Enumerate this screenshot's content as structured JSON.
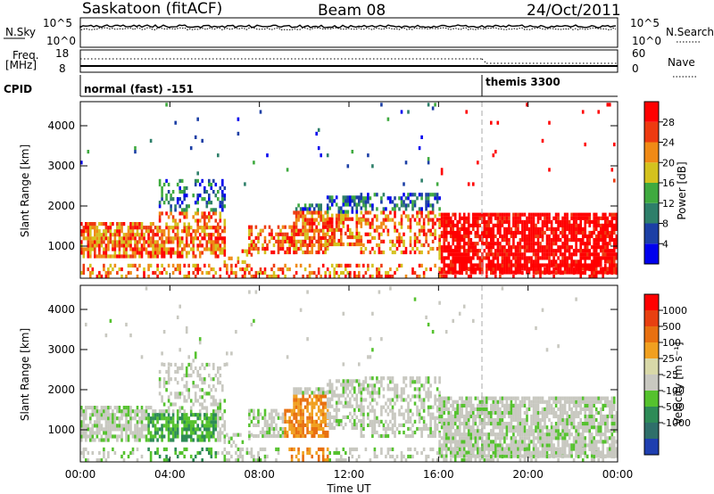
{
  "header": {
    "station": "Saskatoon (fitACF)",
    "beam": "Beam 08",
    "date": "24/Oct/2011"
  },
  "top_panel": {
    "left_label": "N.Sky",
    "right_label": "N.Search",
    "left_ticks": [
      "10^5",
      "10^0"
    ],
    "right_ticks": [
      "10^5",
      "10^0"
    ]
  },
  "freq_panel": {
    "left_label": "Freq.",
    "left_unit": "[MHz]",
    "right_label": "Nave",
    "left_ticks": [
      "18",
      "8"
    ],
    "right_ticks": [
      "60",
      "0"
    ]
  },
  "cpid_panel": {
    "label": "CPID",
    "modes": [
      {
        "name": "normal (fast) -151",
        "start_hour": 0
      },
      {
        "name": "themis 3300",
        "start_hour": 18
      }
    ]
  },
  "colors": {
    "power": [
      "#0000ee",
      "#1c3fa5",
      "#2e7f6a",
      "#3faa3f",
      "#d4c21e",
      "#f08a16",
      "#ee3a10",
      "#ff0000"
    ],
    "velocity": [
      "#1f3fb0",
      "#2f6f6a",
      "#2e8b57",
      "#55c22e",
      "#c8c8c0",
      "#d8d8a8",
      "#f0a020",
      "#e87010",
      "#e84010",
      "#ff0000"
    ]
  },
  "chart_data": [
    {
      "type": "heatmap",
      "name": "power",
      "ylabel": "Slant Range [km]",
      "xlim": [
        0,
        24
      ],
      "ylim": [
        200,
        4600
      ],
      "yticks": [
        "1000",
        "2000",
        "3000",
        "4000"
      ],
      "colorbar": {
        "label": "Power [dB]",
        "ticks": [
          "4",
          "8",
          "12",
          "16",
          "20",
          "24",
          "28"
        ]
      }
    },
    {
      "type": "heatmap",
      "name": "velocity",
      "xlabel": "Time UT",
      "ylabel": "Slant Range [km]",
      "xlim": [
        0,
        24
      ],
      "ylim": [
        200,
        4600
      ],
      "xticks": [
        "00:00",
        "04:00",
        "08:00",
        "12:00",
        "16:00",
        "20:00",
        "00:00"
      ],
      "yticks": [
        "1000",
        "2000",
        "3000",
        "4000"
      ],
      "colorbar": {
        "label": "Velocity [m s⁻¹]",
        "ticks": [
          "1000",
          "500",
          "100",
          "25",
          "-25",
          "-100",
          "-500",
          "-1000"
        ]
      }
    }
  ]
}
